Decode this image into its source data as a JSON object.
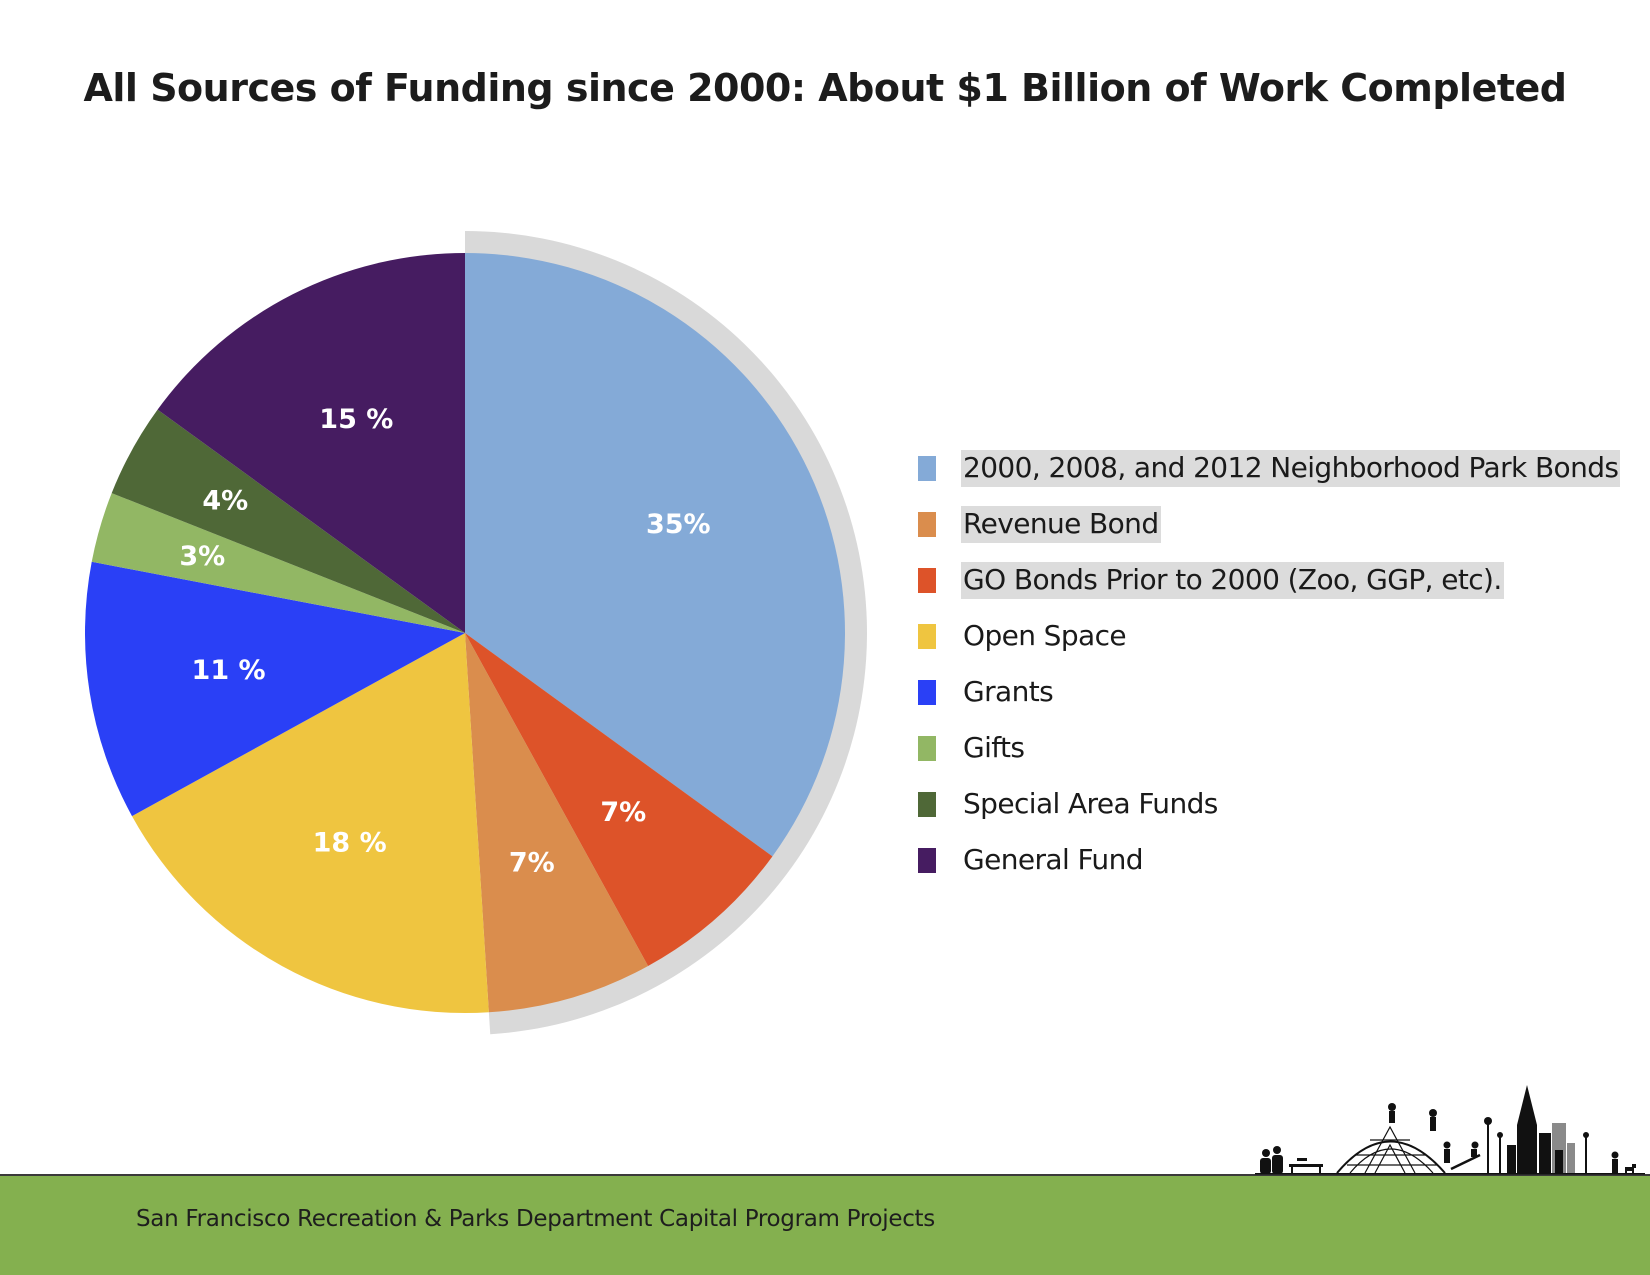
{
  "title": "All Sources of Funding since 2000: About $1 Billion of Work Completed",
  "footer": {
    "text": "San Francisco Recreation & Parks Department Capital Program Projects",
    "band_color": "#84b04f"
  },
  "highlight_color": "#d9d9d9",
  "skyline_icon": "park-skyline-silhouette-icon",
  "chart_data": {
    "type": "pie",
    "title": "All Sources of Funding since 2000: About $1 Billion of Work Completed",
    "start": "12 o'clock, clockwise",
    "slices": [
      {
        "label": "2000, 2008, and 2012 Neighborhood Park Bonds",
        "value": 35,
        "display": "35%",
        "color": "#84aad7",
        "highlighted": true
      },
      {
        "label": "GO Bonds Prior to 2000 (Zoo, GGP, etc).",
        "value": 7,
        "display": "7%",
        "color": "#dd5329",
        "highlighted": true
      },
      {
        "label": "Revenue Bond",
        "value": 7,
        "display": "7%",
        "color": "#da8d4d",
        "highlighted": true
      },
      {
        "label": "Open Space",
        "value": 18,
        "display": "18 %",
        "color": "#efc540",
        "highlighted": false
      },
      {
        "label": "Grants",
        "value": 11,
        "display": "11 %",
        "color": "#2a40f6",
        "highlighted": false
      },
      {
        "label": "Gifts",
        "value": 3,
        "display": "3%",
        "color": "#92b764",
        "highlighted": false
      },
      {
        "label": "Special Area Funds",
        "value": 4,
        "display": "4%",
        "color": "#4f6837",
        "highlighted": false
      },
      {
        "label": "General Fund",
        "value": 15,
        "display": "15 %",
        "color": "#461c61",
        "highlighted": false
      }
    ],
    "legend": {
      "placement": "right",
      "items": [
        {
          "label": "2000, 2008, and 2012 Neighborhood Park Bonds",
          "color": "#84aad7",
          "highlighted": true
        },
        {
          "label": "Revenue Bond",
          "color": "#da8d4d",
          "highlighted": true
        },
        {
          "label": "GO Bonds Prior to 2000 (Zoo, GGP, etc).",
          "color": "#dd5329",
          "highlighted": true
        },
        {
          "label": "Open Space",
          "color": "#efc540",
          "highlighted": false
        },
        {
          "label": "Grants",
          "color": "#2a40f6",
          "highlighted": false
        },
        {
          "label": "Gifts",
          "color": "#92b764",
          "highlighted": false
        },
        {
          "label": "Special Area Funds",
          "color": "#4f6837",
          "highlighted": false
        },
        {
          "label": "General Fund",
          "color": "#461c61",
          "highlighted": false
        }
      ]
    }
  }
}
